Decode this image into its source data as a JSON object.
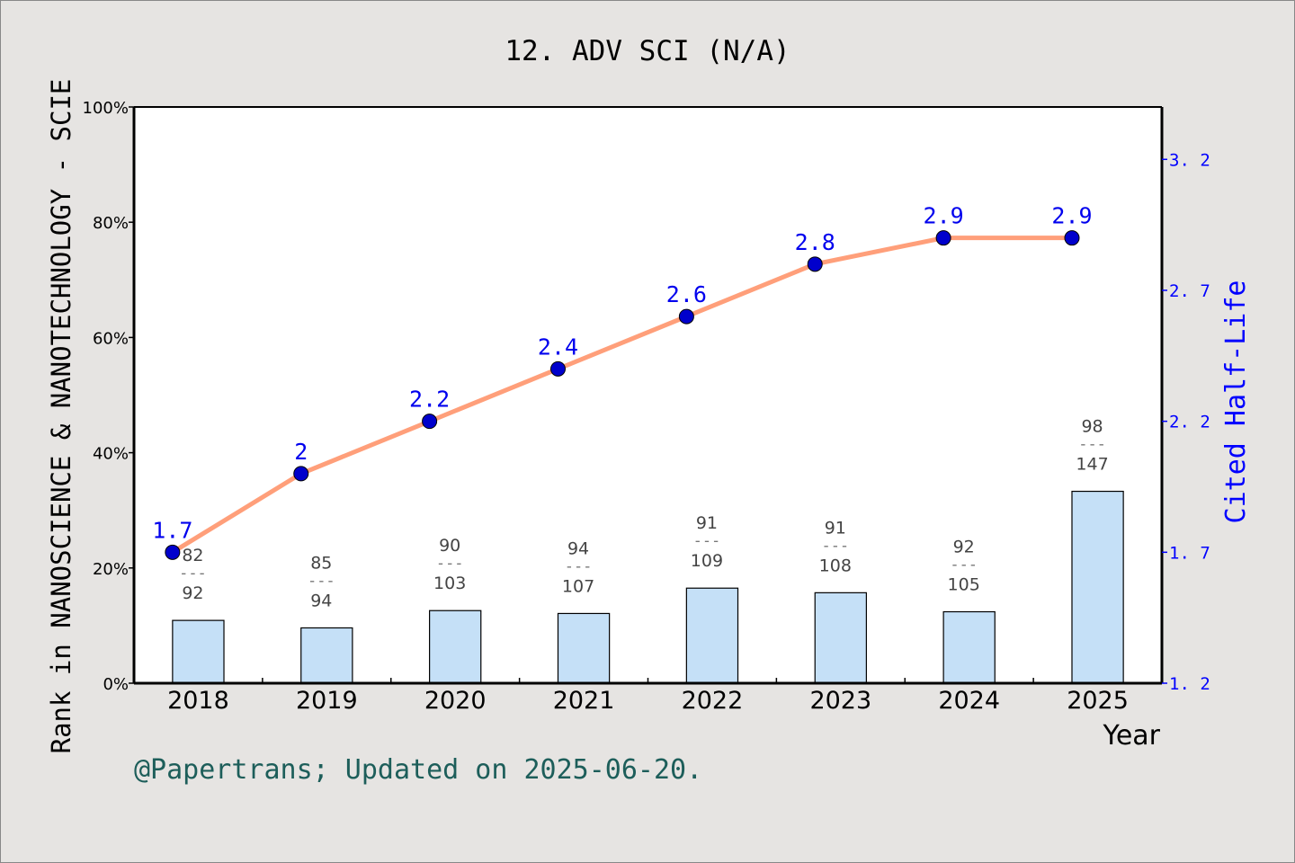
{
  "chart_data": {
    "type": "bar+line",
    "title": "12. ADV SCI (N/A)",
    "xlabel": "Year",
    "ylabel_left": "Rank in NANOSCIENCE & NANOTECHNOLOGY - SCIE",
    "ylabel_right": "Cited Half-Life",
    "categories": [
      "2018",
      "2019",
      "2020",
      "2021",
      "2022",
      "2023",
      "2024",
      "2025"
    ],
    "left_axis": {
      "range": [
        0,
        100
      ],
      "ticks": [
        "0%",
        "20%",
        "40%",
        "60%",
        "80%",
        "100%"
      ]
    },
    "right_axis": {
      "range": [
        1.2,
        3.4
      ],
      "ticks": [
        "1.2",
        "1.7",
        "2.2",
        "2.7",
        "3.2"
      ]
    },
    "bars": {
      "rank": [
        82,
        85,
        90,
        94,
        91,
        91,
        92,
        98
      ],
      "total": [
        92,
        94,
        103,
        107,
        109,
        108,
        105,
        147
      ],
      "separator": "---",
      "percent": [
        10.9,
        9.6,
        12.6,
        12.1,
        16.5,
        15.7,
        12.4,
        33.3
      ],
      "color": "#c5e0f7"
    },
    "line": {
      "values": [
        1.7,
        2,
        2.2,
        2.4,
        2.6,
        2.8,
        2.9,
        2.9
      ],
      "labels": [
        "1.7",
        "2",
        "2.2",
        "2.4",
        "2.6",
        "2.8",
        "2.9",
        "2.9"
      ],
      "line_color": "#ff9f7a",
      "marker_color": "#0000cc",
      "label_color": "#0000ee"
    },
    "grid": false,
    "footer": "@Papertrans; Updated on 2025-06-20."
  }
}
